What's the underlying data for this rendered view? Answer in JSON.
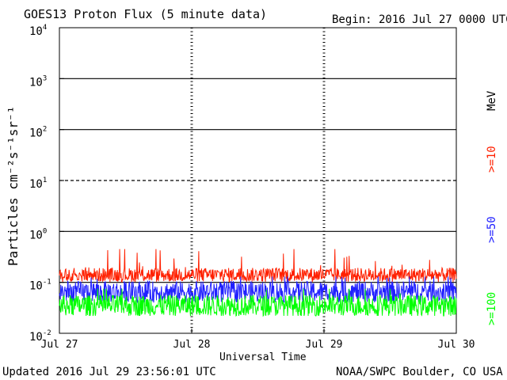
{
  "chart_data": {
    "type": "line",
    "title": "GOES13 Proton Flux (5 minute data)",
    "begin_label": "Begin: 2016 Jul 27 0000 UTC",
    "ylabel": "Particles cm⁻²s⁻¹sr⁻¹",
    "xlabel": "Universal Time",
    "updated": "Updated 2016 Jul 29 23:56:01 UTC",
    "credit": "NOAA/SWPC Boulder, CO USA",
    "y_scale": "log",
    "ylim": [
      0.01,
      10000
    ],
    "y_ticks": [
      {
        "value": 10000,
        "mantissa": "10",
        "exp": "4"
      },
      {
        "value": 1000,
        "mantissa": "10",
        "exp": "3"
      },
      {
        "value": 100,
        "mantissa": "10",
        "exp": "2"
      },
      {
        "value": 10,
        "mantissa": "10",
        "exp": "1"
      },
      {
        "value": 1,
        "mantissa": "10",
        "exp": "0"
      },
      {
        "value": 0.1,
        "mantissa": "10",
        "exp": "-1"
      },
      {
        "value": 0.01,
        "mantissa": "10",
        "exp": "-2"
      }
    ],
    "x_range": [
      "2016-07-27",
      "2016-07-30"
    ],
    "x_ticks": [
      "Jul 27",
      "Jul 28",
      "Jul 29",
      "Jul 30"
    ],
    "horizontal_lines": [
      {
        "value": 1000,
        "style": "solid"
      },
      {
        "value": 100,
        "style": "solid"
      },
      {
        "value": 10,
        "style": "dashed"
      },
      {
        "value": 1,
        "style": "solid"
      },
      {
        "value": 0.1,
        "style": "solid"
      }
    ],
    "energy_unit": "MeV",
    "series": [
      {
        "name": ">=10",
        "color": "#ff2000",
        "mean": 0.14,
        "min": 0.1,
        "max": 0.45
      },
      {
        "name": ">=50",
        "color": "#2020ff",
        "mean": 0.065,
        "min": 0.04,
        "max": 0.13
      },
      {
        "name": ">=100",
        "color": "#00ff00",
        "mean": 0.035,
        "min": 0.022,
        "max": 0.075
      }
    ]
  }
}
